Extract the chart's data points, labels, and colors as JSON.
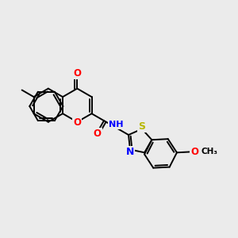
{
  "background_color": "#ebebeb",
  "bond_color": "#000000",
  "atom_colors": {
    "O": "#ff0000",
    "N": "#0000ff",
    "S": "#b8b800",
    "C": "#000000",
    "H": "#5a9ea0"
  },
  "figsize": [
    3.0,
    3.0
  ],
  "dpi": 100,
  "lw": 1.4,
  "bl": 1.0,
  "xlim": [
    0,
    12
  ],
  "ylim": [
    0,
    12
  ]
}
